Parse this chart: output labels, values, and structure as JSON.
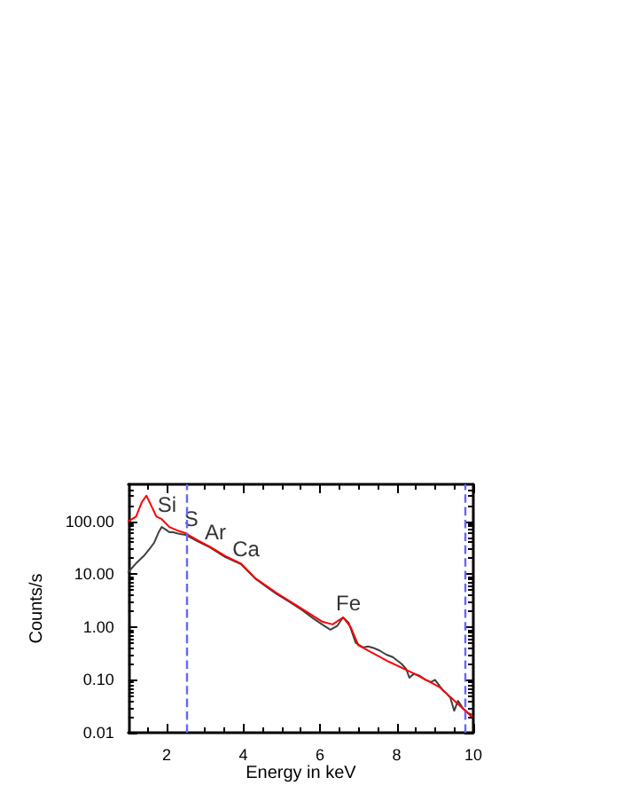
{
  "chart_data": {
    "type": "line",
    "xlabel": "Energy in keV",
    "ylabel": "Counts/s",
    "xlim": [
      1,
      10
    ],
    "xticks": [
      2,
      4,
      6,
      8,
      10
    ],
    "ylim": [
      0.01,
      500
    ],
    "yticks": [
      {
        "value": 0.01,
        "label": "0.01"
      },
      {
        "value": 0.1,
        "label": "0.10"
      },
      {
        "value": 1,
        "label": "1.00"
      },
      {
        "value": 10,
        "label": "10.00"
      },
      {
        "value": 100,
        "label": "100.00"
      }
    ],
    "log": "y",
    "grid": false,
    "marker": "none",
    "line_style": "solid",
    "series": [
      {
        "color": "#404040",
        "x": [
          1.0,
          1.2,
          1.4,
          1.55,
          1.67,
          1.78,
          1.87,
          1.97,
          2.07,
          2.17,
          2.27,
          2.38,
          2.5,
          2.8,
          3.13,
          3.53,
          3.93,
          4.33,
          4.6,
          4.87,
          5.2,
          5.53,
          5.8,
          6.07,
          6.27,
          6.45,
          6.6,
          6.75,
          6.93,
          7.13,
          7.25,
          7.4,
          7.55,
          7.73,
          7.9,
          8.13,
          8.25,
          8.33,
          8.45,
          8.6,
          8.75,
          8.9,
          9.0,
          9.1,
          9.2,
          9.3,
          9.4,
          9.5,
          9.6,
          9.73,
          9.85,
          9.96
        ],
        "values": [
          11,
          16,
          22,
          30,
          39,
          60,
          78,
          70,
          62,
          62,
          59,
          57,
          55,
          42,
          32,
          21,
          15.5,
          8.0,
          5.8,
          4.2,
          3.0,
          2.1,
          1.5,
          1.1,
          0.89,
          1.05,
          1.52,
          1.2,
          0.5,
          0.41,
          0.43,
          0.4,
          0.36,
          0.3,
          0.27,
          0.2,
          0.16,
          0.11,
          0.13,
          0.12,
          0.1,
          0.091,
          0.1,
          0.08,
          0.064,
          0.055,
          0.046,
          0.026,
          0.04,
          0.029,
          0.024,
          0.022
        ]
      },
      {
        "color": "#ff0000",
        "x": [
          1.0,
          1.2,
          1.35,
          1.47,
          1.6,
          1.73,
          1.87,
          2.07,
          2.33,
          2.5,
          2.8,
          3.13,
          3.53,
          3.93,
          4.33,
          4.87,
          5.53,
          6.07,
          6.33,
          6.6,
          6.8,
          7.0,
          7.8,
          8.47,
          9.13,
          9.96
        ],
        "values": [
          100,
          123,
          230,
          306,
          195,
          123,
          110,
          78,
          65,
          59,
          44,
          33,
          22,
          16,
          8.2,
          4.4,
          2.2,
          1.25,
          1.12,
          1.52,
          1.0,
          0.45,
          0.22,
          0.13,
          0.072,
          0.02
        ]
      }
    ],
    "ref_lines": [
      {
        "axis": "x",
        "value": 2.5,
        "color": "#6666ff",
        "line_style": "dashed"
      },
      {
        "axis": "x",
        "value": 9.8,
        "color": "#6666ff",
        "line_style": "dashed"
      }
    ],
    "annotations": [
      {
        "text": "Si",
        "x": 1.87,
        "y": 110
      },
      {
        "text": "S",
        "x": 2.5,
        "y": 59
      },
      {
        "text": "Ar",
        "x": 3.13,
        "y": 33
      },
      {
        "text": "Ca",
        "x": 3.93,
        "y": 16
      },
      {
        "text": "Fe",
        "x": 6.6,
        "y": 1.52
      }
    ]
  }
}
